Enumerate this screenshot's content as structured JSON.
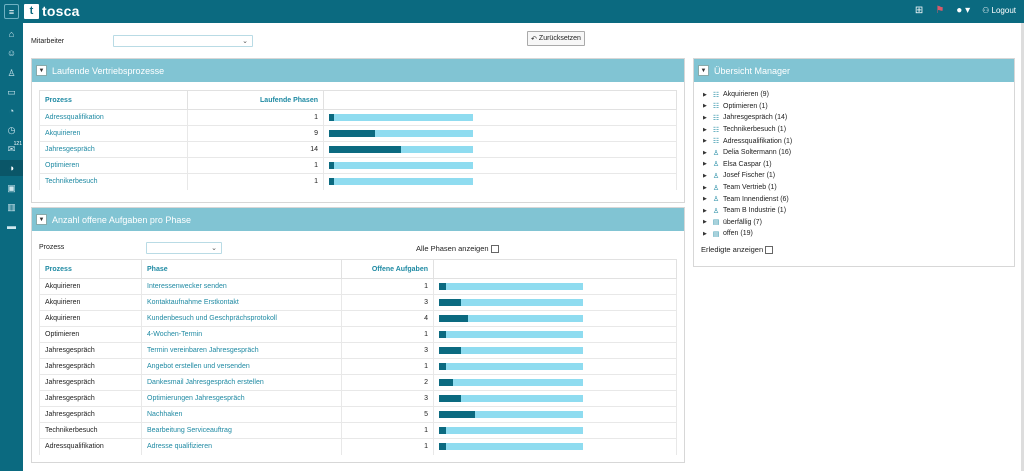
{
  "app": {
    "logo_text": "tosca",
    "logout_label": "Logout"
  },
  "filters": {
    "mitarbeiter_label": "Mitarbeiter",
    "mitarbeiter_value": "",
    "reset_label": "Zurücksetzen"
  },
  "sidebar": {
    "badge": "121"
  },
  "vertrieb": {
    "title": "Laufende Vertriebsprozesse",
    "headers": {
      "prozess": "Prozess",
      "phasen": "Laufende Phasen"
    },
    "max": 28,
    "rows": [
      {
        "prozess": "Adressqualifikation",
        "phasen": "1",
        "value": 1
      },
      {
        "prozess": "Akquirieren",
        "phasen": "9",
        "value": 9
      },
      {
        "prozess": "Jahresgespräch",
        "phasen": "14",
        "value": 14
      },
      {
        "prozess": "Optimieren",
        "phasen": "1",
        "value": 1
      },
      {
        "prozess": "Technikerbesuch",
        "phasen": "1",
        "value": 1
      }
    ]
  },
  "aufgaben": {
    "title": "Anzahl offene Aufgaben pro Phase",
    "prozess_label": "Prozess",
    "prozess_value": "",
    "alle_phasen_label": "Alle Phasen anzeigen",
    "headers": {
      "prozess": "Prozess",
      "phase": "Phase",
      "offen": "Offene Aufgaben"
    },
    "max": 20,
    "rows": [
      {
        "prozess": "Akquirieren",
        "phase": "Interessenwecker senden",
        "offen": "1",
        "value": 1
      },
      {
        "prozess": "Akquirieren",
        "phase": "Kontaktaufnahme Erstkontakt",
        "offen": "3",
        "value": 3
      },
      {
        "prozess": "Akquirieren",
        "phase": "Kundenbesuch und Geschprächsprotokoll",
        "offen": "4",
        "value": 4
      },
      {
        "prozess": "Optimieren",
        "phase": "4-Wochen-Termin",
        "offen": "1",
        "value": 1
      },
      {
        "prozess": "Jahresgespräch",
        "phase": "Termin vereinbaren Jahresgespräch",
        "offen": "3",
        "value": 3
      },
      {
        "prozess": "Jahresgespräch",
        "phase": "Angebot erstellen und versenden",
        "offen": "1",
        "value": 1
      },
      {
        "prozess": "Jahresgespräch",
        "phase": "Dankesmail Jahresgespräch erstellen",
        "offen": "2",
        "value": 2
      },
      {
        "prozess": "Jahresgespräch",
        "phase": "Optimierungen Jahresgespräch",
        "offen": "3",
        "value": 3
      },
      {
        "prozess": "Jahresgespräch",
        "phase": "Nachhaken",
        "offen": "5",
        "value": 5
      },
      {
        "prozess": "Technikerbesuch",
        "phase": "Bearbeitung Serviceauftrag",
        "offen": "1",
        "value": 1
      },
      {
        "prozess": "Adressqualifikation",
        "phase": "Adresse qualifizieren",
        "offen": "1",
        "value": 1
      }
    ]
  },
  "manager": {
    "title": "Übersicht Manager",
    "erledigte_label": "Erledigte anzeigen",
    "items": [
      {
        "label": "Akquirieren (9)",
        "icon": "list-icon"
      },
      {
        "label": "Optimieren (1)",
        "icon": "list-icon"
      },
      {
        "label": "Jahresgespräch (14)",
        "icon": "list-icon"
      },
      {
        "label": "Technikerbesuch (1)",
        "icon": "list-icon"
      },
      {
        "label": "Adressqualifikation (1)",
        "icon": "list-icon"
      },
      {
        "label": "Delia Soltermann (16)",
        "icon": "user-icon"
      },
      {
        "label": "Elsa Caspar (1)",
        "icon": "user-icon"
      },
      {
        "label": "Josef Fischer (1)",
        "icon": "user-icon"
      },
      {
        "label": "Team Vertrieb (1)",
        "icon": "user-icon"
      },
      {
        "label": "Team Innendienst (6)",
        "icon": "user-icon"
      },
      {
        "label": "Team B Industrie (1)",
        "icon": "user-icon"
      },
      {
        "label": "überfällig (7)",
        "icon": "calendar-icon"
      },
      {
        "label": "offen (19)",
        "icon": "calendar-icon"
      }
    ]
  }
}
